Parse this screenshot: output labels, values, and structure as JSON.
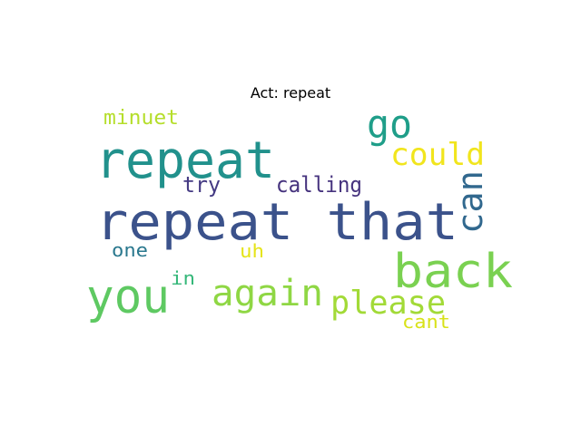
{
  "title": "Act: repeat",
  "words": [
    {
      "text": "repeat that",
      "color": "#3b528b"
    },
    {
      "text": "repeat",
      "color": "#21918c"
    },
    {
      "text": "back",
      "color": "#7ad151"
    },
    {
      "text": "you",
      "color": "#5ec962"
    },
    {
      "text": "again",
      "color": "#8fd744"
    },
    {
      "text": "please",
      "color": "#a2da37"
    },
    {
      "text": "go",
      "color": "#1f9e89"
    },
    {
      "text": "could",
      "color": "#f1e51d"
    },
    {
      "text": "can",
      "color": "#31688e"
    },
    {
      "text": "calling",
      "color": "#46337e"
    },
    {
      "text": "try",
      "color": "#443a83"
    },
    {
      "text": "minuet",
      "color": "#b5de2b"
    },
    {
      "text": "one",
      "color": "#2a788e"
    },
    {
      "text": "uh",
      "color": "#e5e419"
    },
    {
      "text": "in",
      "color": "#35b779"
    },
    {
      "text": "cant",
      "color": "#d8e219"
    }
  ]
}
